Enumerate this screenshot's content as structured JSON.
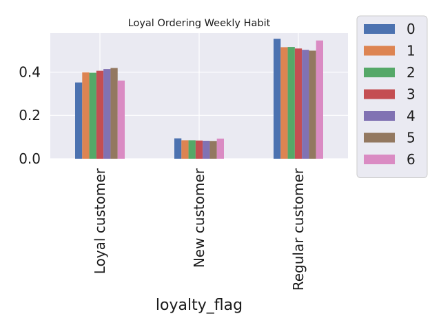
{
  "chart_data": {
    "type": "bar",
    "title": "Loyal Ordering Weekly Habit",
    "xlabel": "loyalty_flag",
    "ylabel": "",
    "categories": [
      "Loyal customer",
      "New customer",
      "Regular customer"
    ],
    "series": [
      {
        "name": "0",
        "values": [
          0.352,
          0.094,
          0.554
        ]
      },
      {
        "name": "1",
        "values": [
          0.399,
          0.085,
          0.515
        ]
      },
      {
        "name": "2",
        "values": [
          0.397,
          0.085,
          0.516
        ]
      },
      {
        "name": "3",
        "values": [
          0.406,
          0.084,
          0.509
        ]
      },
      {
        "name": "4",
        "values": [
          0.414,
          0.083,
          0.503
        ]
      },
      {
        "name": "5",
        "values": [
          0.419,
          0.082,
          0.499
        ]
      },
      {
        "name": "6",
        "values": [
          0.361,
          0.093,
          0.546
        ]
      }
    ],
    "colors": [
      "#4c72b0",
      "#dd8452",
      "#55a868",
      "#c44e52",
      "#8172b3",
      "#937860",
      "#da8bc3"
    ],
    "ylim": [
      0,
      0.58
    ],
    "yticks": [
      {
        "value": 0.0,
        "label": "0.0"
      },
      {
        "value": 0.2,
        "label": "0.2"
      },
      {
        "value": 0.4,
        "label": "0.4"
      }
    ],
    "grid": true,
    "legend_position": "outside-right-top",
    "background": "#eaeaf2",
    "grid_color": "#ffffff"
  }
}
